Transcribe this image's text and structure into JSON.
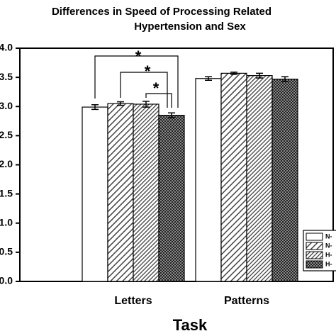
{
  "chart_data": {
    "type": "bar",
    "title": [
      "Differences in Speed of Processing Related",
      "Hypertension and Sex"
    ],
    "x_label": "Task",
    "categories": [
      "Letters",
      "Patterns"
    ],
    "series": [
      {
        "name": "N-",
        "color": "#ffffff",
        "fill": "white",
        "values": [
          2.99,
          3.48
        ],
        "errors": [
          0.04,
          0.03
        ]
      },
      {
        "name": "N-",
        "color": "#555555",
        "fill": "hatch",
        "values": [
          3.05,
          3.57
        ],
        "errors": [
          0.03,
          0.02
        ]
      },
      {
        "name": "H-",
        "color": "#333333",
        "fill": "dense-hatch",
        "values": [
          3.04,
          3.53
        ],
        "errors": [
          0.05,
          0.04
        ]
      },
      {
        "name": "H-",
        "color": "#222222",
        "fill": "cross",
        "values": [
          2.85,
          3.47
        ],
        "errors": [
          0.04,
          0.04
        ]
      }
    ],
    "annotations": [
      "*",
      "*",
      "*"
    ],
    "ylim": [
      0,
      4
    ],
    "yticks": [
      {
        "value": 0,
        "label": "0.0"
      },
      0.5,
      {
        "value": 1,
        "label": "1.0"
      },
      1.5,
      {
        "value": 2,
        "label": "2.0"
      },
      2.5,
      {
        "value": 3,
        "label": "3.0"
      },
      3.5,
      {
        "value": 4,
        "label": "4.0"
      }
    ],
    "legend": "lower right"
  }
}
